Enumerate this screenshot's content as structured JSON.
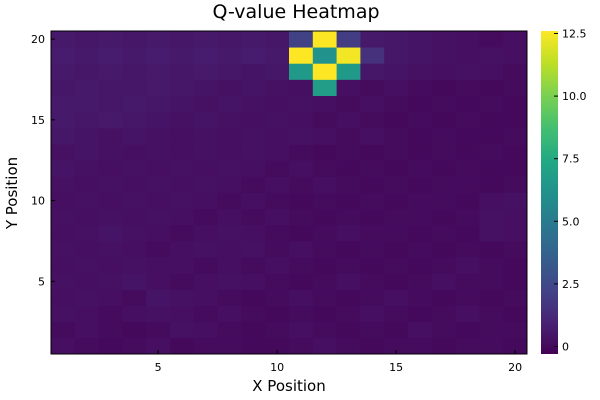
{
  "chart_data": {
    "type": "heatmap",
    "title": "Q-value Heatmap",
    "xlabel": "X Position",
    "ylabel": "Y Position",
    "x": [
      1,
      2,
      3,
      4,
      5,
      6,
      7,
      8,
      9,
      10,
      11,
      12,
      13,
      14,
      15,
      16,
      17,
      18,
      19,
      20
    ],
    "y": [
      1,
      2,
      3,
      4,
      5,
      6,
      7,
      8,
      9,
      10,
      11,
      12,
      13,
      14,
      15,
      16,
      17,
      18,
      19,
      20
    ],
    "xlim": [
      0.5,
      20.5
    ],
    "ylim": [
      0.5,
      20.5
    ],
    "xticks": [
      5,
      10,
      15,
      20
    ],
    "yticks": [
      5,
      10,
      15,
      20
    ],
    "colorbar": {
      "min": -0.3,
      "max": 12.6,
      "ticks": [
        {
          "value": 0,
          "label": "0"
        },
        {
          "value": 2.5,
          "label": "2.5"
        },
        {
          "value": 5,
          "label": "5.0"
        },
        {
          "value": 7.5,
          "label": "7.5"
        },
        {
          "value": 10,
          "label": "10.0"
        },
        {
          "value": 12.5,
          "label": "12.5"
        }
      ]
    },
    "colormap": "viridis",
    "grid": false,
    "values": [
      [
        0.2,
        0.1,
        0.0,
        0.1,
        0.2,
        0.0,
        0.1,
        0.1,
        0.0,
        0.0,
        0.1,
        0.2,
        0.1,
        0.0,
        0.1,
        0.1,
        0.0,
        0.1,
        0.1,
        0.0
      ],
      [
        0.1,
        0.2,
        0.1,
        0.0,
        0.1,
        0.3,
        0.2,
        0.1,
        0.0,
        0.1,
        0.2,
        0.1,
        0.0,
        0.1,
        0.0,
        0.2,
        0.1,
        0.0,
        0.1,
        0.1
      ],
      [
        0.3,
        0.2,
        0.1,
        0.2,
        0.3,
        0.2,
        0.1,
        0.2,
        0.1,
        0.0,
        0.1,
        0.0,
        0.1,
        0.2,
        0.1,
        0.0,
        0.1,
        0.2,
        0.1,
        0.0
      ],
      [
        0.2,
        0.3,
        0.2,
        0.1,
        0.4,
        0.3,
        0.2,
        0.1,
        0.0,
        0.1,
        0.2,
        0.1,
        0.0,
        0.1,
        0.2,
        0.1,
        0.0,
        0.1,
        0.0,
        0.1
      ],
      [
        0.3,
        0.2,
        0.3,
        0.4,
        0.2,
        0.1,
        0.2,
        0.3,
        0.2,
        0.1,
        0.0,
        0.1,
        0.2,
        0.1,
        0.0,
        0.1,
        0.2,
        0.1,
        0.1,
        0.0
      ],
      [
        0.2,
        0.3,
        0.2,
        0.3,
        0.2,
        0.2,
        0.1,
        0.2,
        0.1,
        0.2,
        0.1,
        0.0,
        0.1,
        0.0,
        0.1,
        0.0,
        0.1,
        0.2,
        0.1,
        0.0
      ],
      [
        0.3,
        0.2,
        0.3,
        0.2,
        0.1,
        0.2,
        0.3,
        0.2,
        0.3,
        0.1,
        0.2,
        0.1,
        0.0,
        0.1,
        0.0,
        0.1,
        0.0,
        0.1,
        0.0,
        0.1
      ],
      [
        0.2,
        0.3,
        0.4,
        0.3,
        0.2,
        0.1,
        0.2,
        0.3,
        0.2,
        0.1,
        0.0,
        0.1,
        0.2,
        0.1,
        0.1,
        0.0,
        0.1,
        0.0,
        0.3,
        0.2
      ],
      [
        0.3,
        0.2,
        0.3,
        0.2,
        0.3,
        0.2,
        0.1,
        0.2,
        0.1,
        0.2,
        0.1,
        0.0,
        0.1,
        0.0,
        0.1,
        0.1,
        0.0,
        0.1,
        0.3,
        0.2
      ],
      [
        0.2,
        0.3,
        0.2,
        0.3,
        0.2,
        0.3,
        0.2,
        0.1,
        0.2,
        0.1,
        0.0,
        0.1,
        0.0,
        0.1,
        0.0,
        0.1,
        0.1,
        0.0,
        0.2,
        0.3
      ],
      [
        0.3,
        0.2,
        0.3,
        0.2,
        0.3,
        0.2,
        0.3,
        0.2,
        0.1,
        0.2,
        0.1,
        0.2,
        0.1,
        0.0,
        0.1,
        0.0,
        0.1,
        0.1,
        0.0,
        0.1
      ],
      [
        0.4,
        0.3,
        0.2,
        0.3,
        0.2,
        0.3,
        0.2,
        0.3,
        0.2,
        0.1,
        0.2,
        0.1,
        0.0,
        0.1,
        0.0,
        0.1,
        0.0,
        0.1,
        0.0,
        0.0
      ],
      [
        0.3,
        0.4,
        0.3,
        0.2,
        0.3,
        0.2,
        0.3,
        0.2,
        0.3,
        0.2,
        0.1,
        0.0,
        0.1,
        0.0,
        0.1,
        0.0,
        0.1,
        0.0,
        0.1,
        0.0
      ],
      [
        0.5,
        0.4,
        0.3,
        0.4,
        0.3,
        0.2,
        0.3,
        0.2,
        0.3,
        0.2,
        0.3,
        0.2,
        0.1,
        0.2,
        0.1,
        0.0,
        0.1,
        0.0,
        0.0,
        0.1
      ],
      [
        0.6,
        0.5,
        0.6,
        0.5,
        0.4,
        0.3,
        0.4,
        0.3,
        0.2,
        0.3,
        0.2,
        0.1,
        0.2,
        0.1,
        0.0,
        0.1,
        0.0,
        0.1,
        0.0,
        0.0
      ],
      [
        0.6,
        0.6,
        0.5,
        0.6,
        0.5,
        0.4,
        0.3,
        0.4,
        0.3,
        0.2,
        0.3,
        0.2,
        0.1,
        0.2,
        0.1,
        0.0,
        0.1,
        0.0,
        0.1,
        0.0
      ],
      [
        0.5,
        0.6,
        0.5,
        0.5,
        0.6,
        0.5,
        0.4,
        0.3,
        0.4,
        0.3,
        0.2,
        6.8,
        0.2,
        0.1,
        0.2,
        0.1,
        0.0,
        0.1,
        0.0,
        0.1
      ],
      [
        0.6,
        0.5,
        0.6,
        0.5,
        0.6,
        0.5,
        0.6,
        0.5,
        0.4,
        0.5,
        6.6,
        12.6,
        6.6,
        0.5,
        0.4,
        0.3,
        0.2,
        0.3,
        0.2,
        0.1
      ],
      [
        0.7,
        0.6,
        0.7,
        0.6,
        0.7,
        0.6,
        0.7,
        0.6,
        0.7,
        0.6,
        12.6,
        6.2,
        12.4,
        1.5,
        0.5,
        0.4,
        0.3,
        0.2,
        0.3,
        0.2
      ],
      [
        0.6,
        0.5,
        0.6,
        0.5,
        0.6,
        0.5,
        0.6,
        0.5,
        0.6,
        0.5,
        2.2,
        12.6,
        2.0,
        0.6,
        0.5,
        0.4,
        0.3,
        0.2,
        0.1,
        0.2
      ]
    ]
  }
}
